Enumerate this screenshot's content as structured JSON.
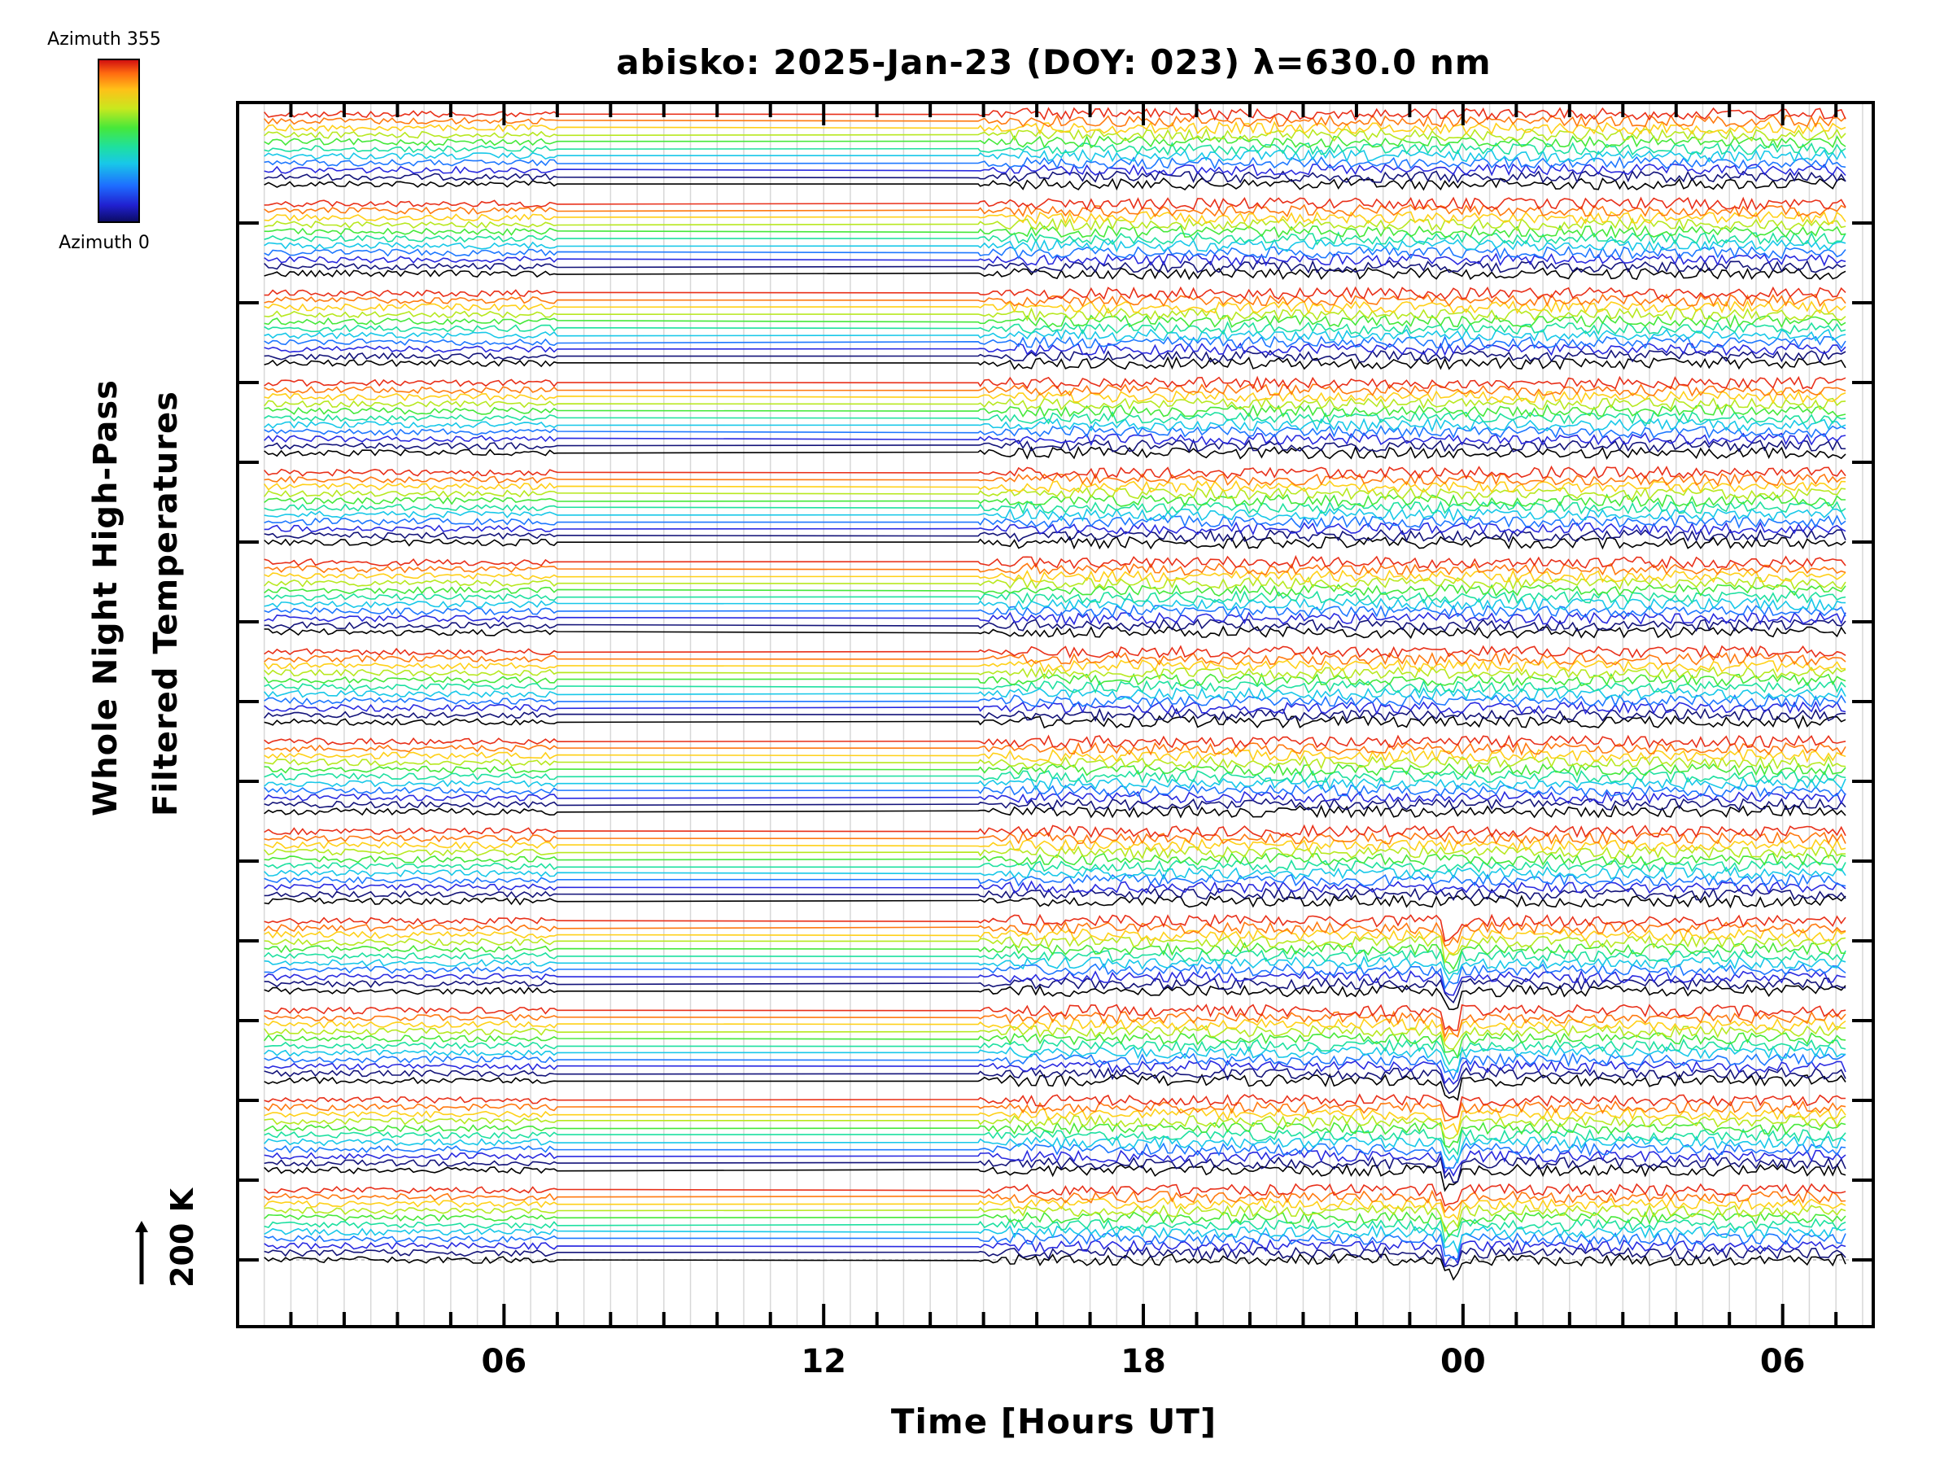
{
  "chart_data": {
    "type": "line",
    "title": "abisko: 2025-Jan-23 (DOY: 023) λ=630.0 nm",
    "xlabel": "Time [Hours UT]",
    "ylabel_line1": "Whole Night High-Pass",
    "ylabel_line2": "Filtered Temperatures",
    "scale_bar_label": "200 K",
    "colorbar": {
      "top_label": "Azimuth 355",
      "bottom_label": "Azimuth 0",
      "colors": [
        "#000000",
        "#14147a",
        "#2a2ae0",
        "#1e78ff",
        "#18c8e8",
        "#1ee0a0",
        "#46e83a",
        "#b8e820",
        "#ffd018",
        "#ff7a10",
        "#e8301a"
      ]
    },
    "x_ticks": [
      {
        "hours": 6,
        "label": "06"
      },
      {
        "hours": 12,
        "label": "12"
      },
      {
        "hours": 18,
        "label": "18"
      },
      {
        "hours": 24,
        "label": "00"
      },
      {
        "hours": 30,
        "label": "06"
      }
    ],
    "xlim_hours": [
      1.0,
      31.7
    ],
    "data_range_hours": [
      1.5,
      31.2
    ],
    "data_gap_hours": [
      7.0,
      14.9
    ],
    "num_groups": 13,
    "traces_per_group": 11,
    "grid": true
  }
}
